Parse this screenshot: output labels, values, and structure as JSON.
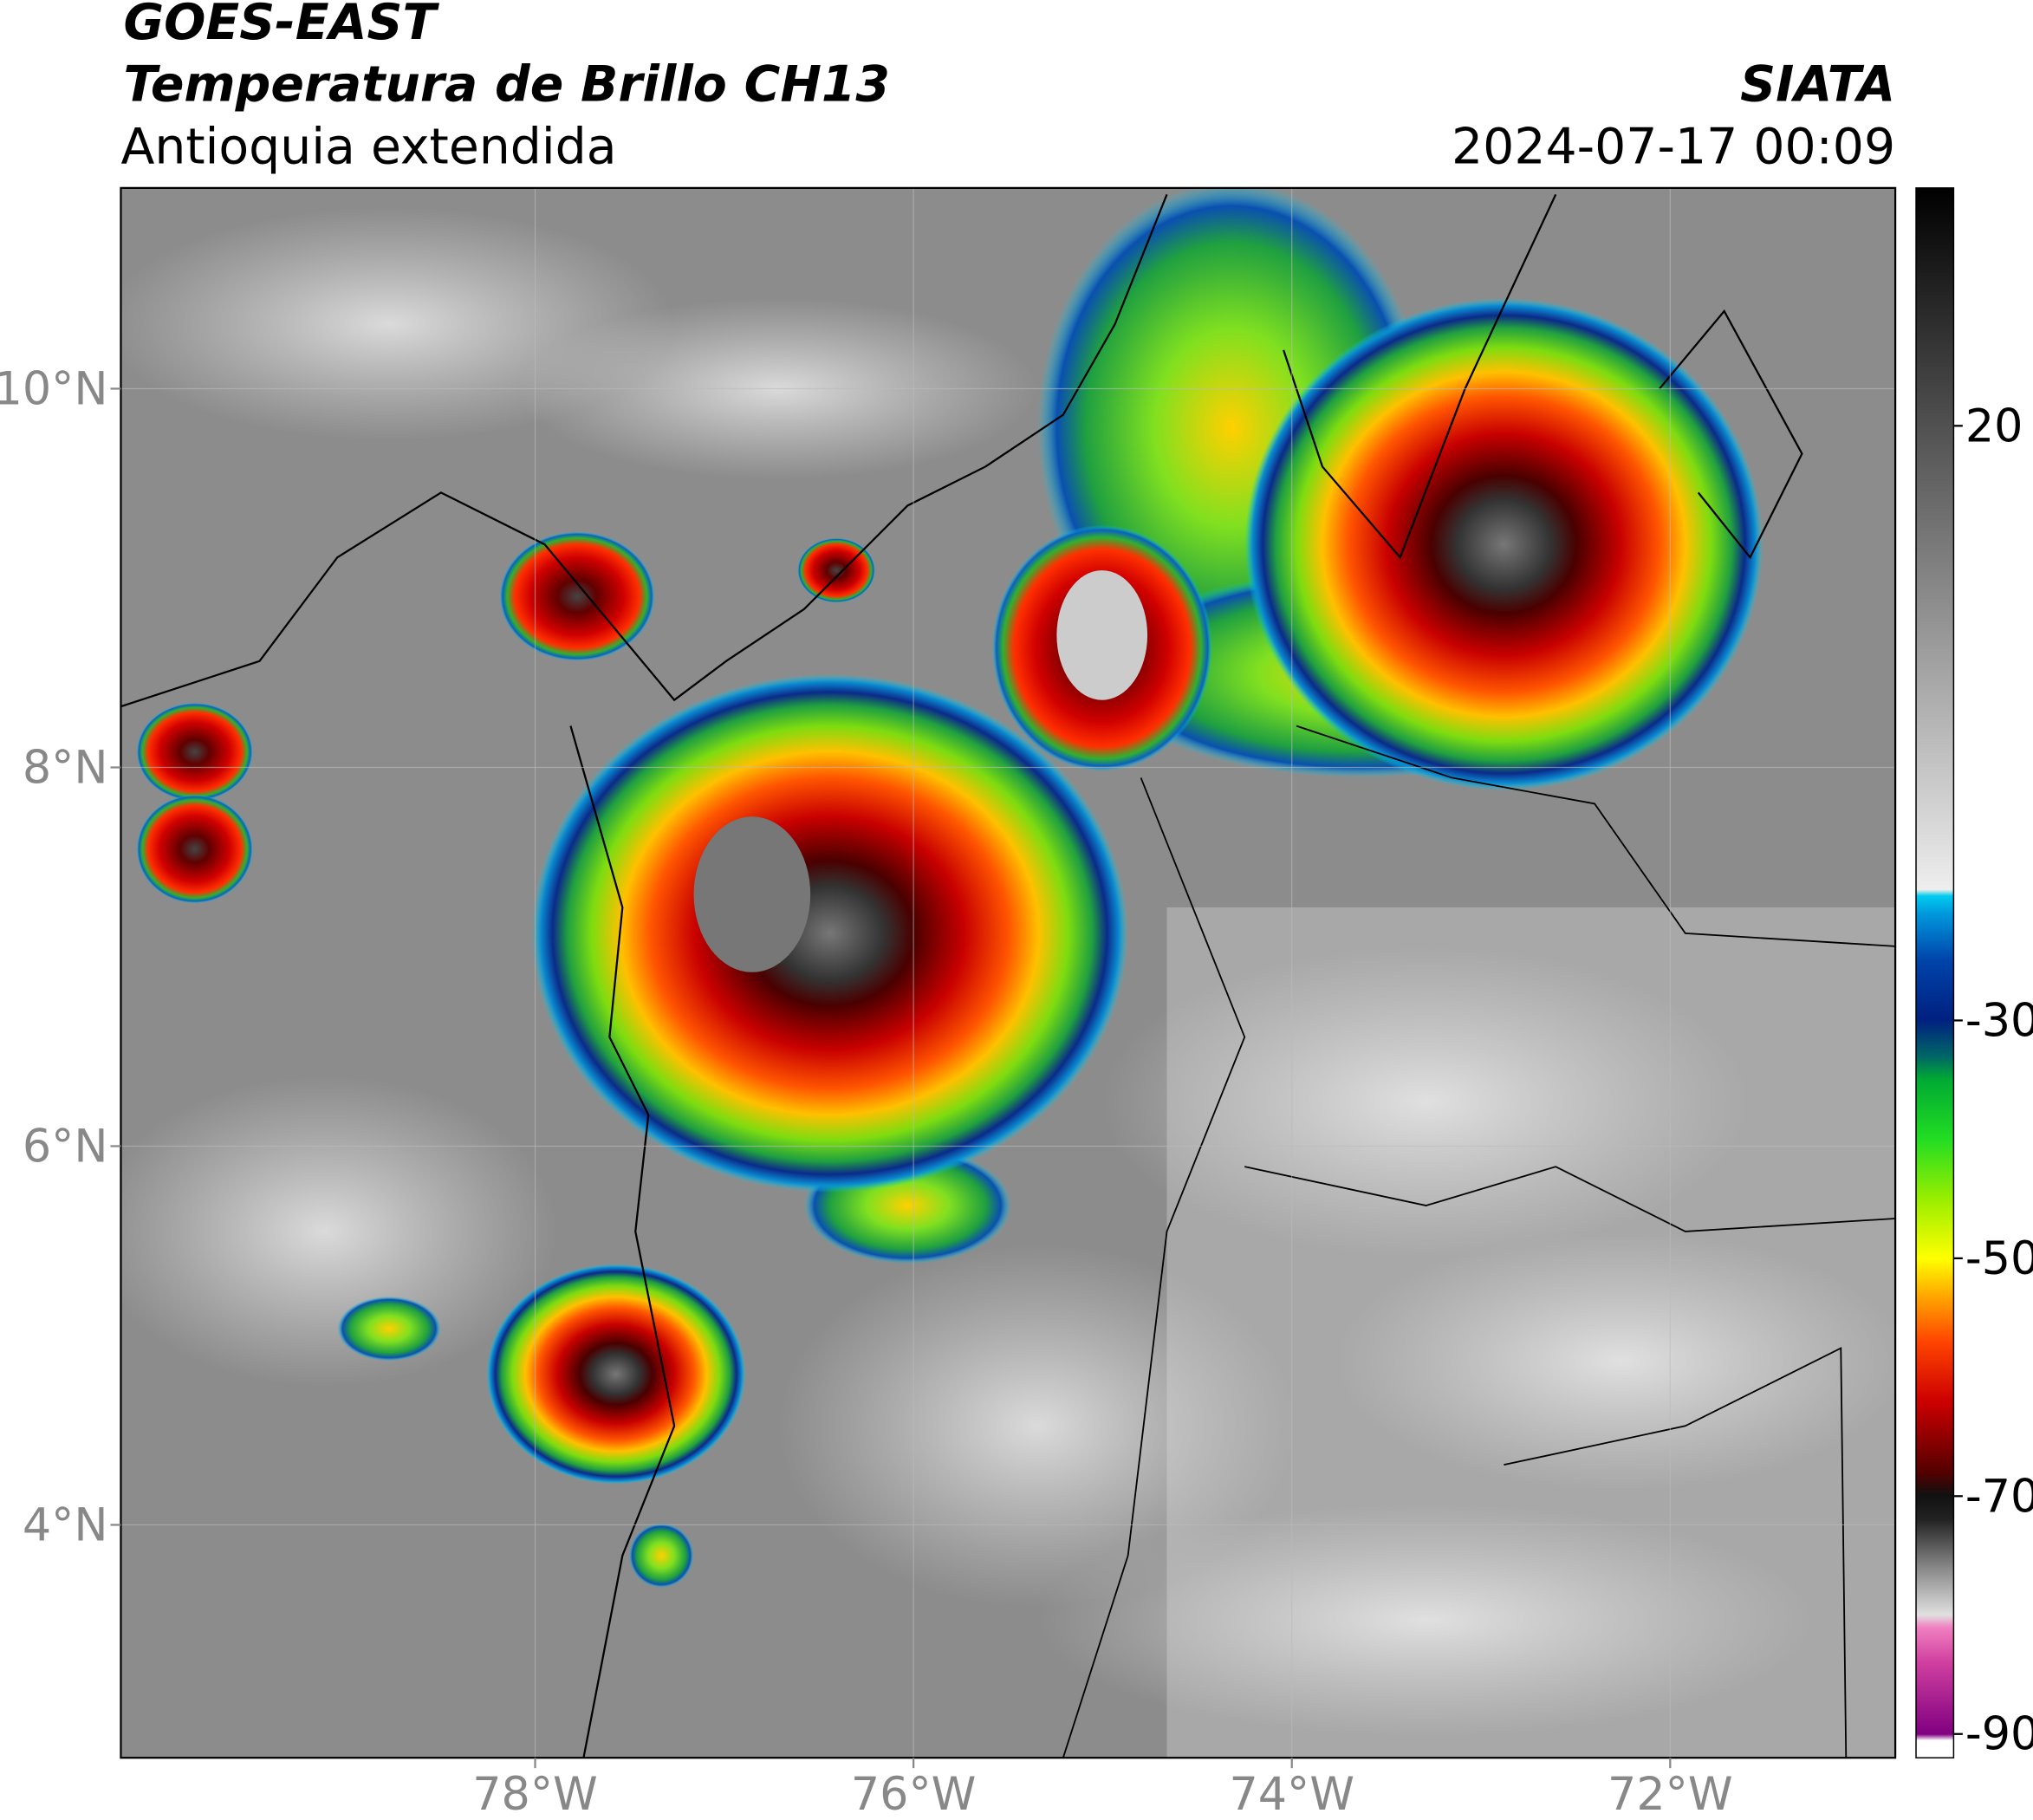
{
  "chart_data": {
    "type": "map",
    "title": "GOES-EAST",
    "subtitle": "Temperatura de Brillo CH13",
    "region": "Antioquia extendida",
    "source": "SIATA",
    "datetime": "2024-07-17 00:09",
    "xlim": [
      -80.19,
      -70.81
    ],
    "ylim": [
      2.77,
      11.06
    ],
    "xticks": [
      {
        "value": -78,
        "label": "78°W"
      },
      {
        "value": -76,
        "label": "76°W"
      },
      {
        "value": -74,
        "label": "74°W"
      },
      {
        "value": -72,
        "label": "72°W"
      }
    ],
    "yticks": [
      {
        "value": 4,
        "label": "4°N"
      },
      {
        "value": 6,
        "label": "6°N"
      },
      {
        "value": 8,
        "label": "8°N"
      },
      {
        "value": 10,
        "label": "10°N"
      }
    ],
    "grid": true,
    "colorbar": {
      "clim": [
        -92,
        40
      ],
      "ticks": [
        20,
        -30,
        -50,
        -70,
        -90
      ]
    }
  }
}
